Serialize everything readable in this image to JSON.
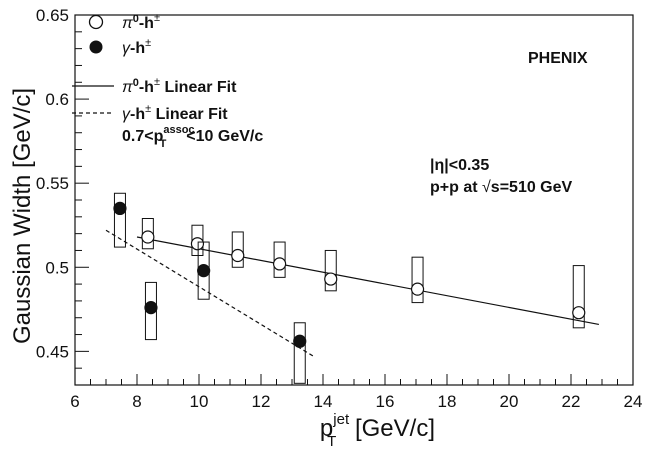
{
  "chart_data": {
    "type": "scatter",
    "xlabel_main": "p",
    "xlabel_sub": "T",
    "xlabel_sup": "jet",
    "xlabel_unit": " [GeV/c]",
    "ylabel": "Gaussian Width [GeV/c]",
    "xlim": [
      6,
      24
    ],
    "ylim": [
      0.43,
      0.65
    ],
    "xticks": [
      6,
      8,
      10,
      12,
      14,
      16,
      18,
      20,
      22,
      24
    ],
    "xtick_labels": [
      "6",
      "8",
      "10",
      "12",
      "14",
      "16",
      "18",
      "20",
      "22",
      "24"
    ],
    "yticks": [
      0.45,
      0.5,
      0.55,
      0.6,
      0.65
    ],
    "ytick_labels": [
      "0.45",
      "0.5",
      "0.55",
      "0.6",
      "0.65"
    ],
    "grid": false,
    "legend_position": "top-left",
    "legend": [
      {
        "label_main": "π",
        "label_sup1": "0",
        "label_mid": "-h",
        "label_sup2": "±",
        "marker": "open-circle"
      },
      {
        "label_main": "γ",
        "label_sup1": "",
        "label_mid": "-h",
        "label_sup2": "±",
        "marker": "filled-circle"
      },
      {
        "label_main": "π",
        "label_sup1": "0",
        "label_mid": "-h",
        "label_sup2": "±",
        "label_tail": " Linear Fit",
        "marker": "solid-line"
      },
      {
        "label_main": "γ",
        "label_sup1": "",
        "label_mid": "-h",
        "label_sup2": "±",
        "label_tail": " Linear Fit",
        "marker": "dashed-line"
      }
    ],
    "cut_label": {
      "pre": "0.7<p",
      "sub": "T",
      "sup": "assoc",
      "post": "<10 GeV/c"
    },
    "experiment": "PHENIX",
    "eta_cut": "|η|<0.35",
    "system_pre": "p+p at ",
    "system_sqrt": "√",
    "system_post": "s=510 GeV",
    "series": [
      {
        "marker": "open-circle",
        "points": [
          {
            "x": 8.35,
            "y": 0.518,
            "box_lo": 0.511,
            "box_hi": 0.529
          },
          {
            "x": 9.95,
            "y": 0.514,
            "box_lo": 0.507,
            "box_hi": 0.525
          },
          {
            "x": 11.25,
            "y": 0.507,
            "box_lo": 0.5,
            "box_hi": 0.521
          },
          {
            "x": 12.6,
            "y": 0.502,
            "box_lo": 0.494,
            "box_hi": 0.515
          },
          {
            "x": 14.25,
            "y": 0.493,
            "box_lo": 0.486,
            "box_hi": 0.51
          },
          {
            "x": 17.05,
            "y": 0.487,
            "box_lo": 0.479,
            "box_hi": 0.506
          },
          {
            "x": 22.25,
            "y": 0.473,
            "box_lo": 0.464,
            "box_hi": 0.501
          }
        ],
        "fit": {
          "x": [
            8.0,
            22.9
          ],
          "y": [
            0.518,
            0.466
          ]
        }
      },
      {
        "marker": "filled-circle",
        "points": [
          {
            "x": 7.45,
            "y": 0.535,
            "box_lo": 0.512,
            "box_hi": 0.544
          },
          {
            "x": 8.45,
            "y": 0.476,
            "box_lo": 0.457,
            "box_hi": 0.491
          },
          {
            "x": 10.15,
            "y": 0.498,
            "box_lo": 0.481,
            "box_hi": 0.515
          },
          {
            "x": 13.25,
            "y": 0.456,
            "box_lo": 0.431,
            "box_hi": 0.467
          }
        ],
        "fit": {
          "x": [
            7.0,
            13.7
          ],
          "y": [
            0.522,
            0.447
          ]
        }
      }
    ]
  }
}
